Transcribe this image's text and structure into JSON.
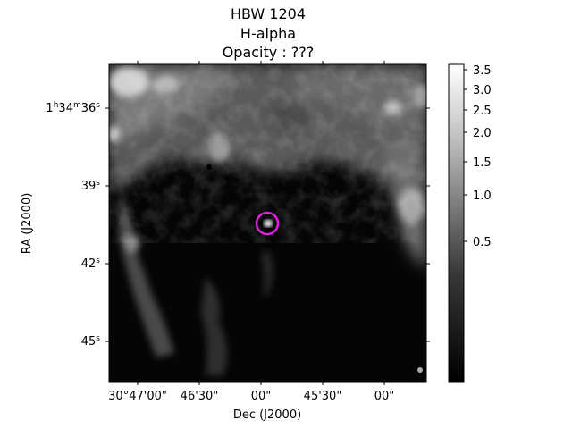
{
  "title": {
    "line1": "HBW 1204",
    "line2": "H-alpha",
    "line3": "Opacity : ???"
  },
  "axes": {
    "xlabel": "Dec (J2000)",
    "ylabel": "RA (J2000)",
    "x_ticks": [
      "30°47'00\"",
      "46'30\"",
      "00\"",
      "45'30\"",
      "00\""
    ],
    "y_ticks": [
      {
        "main": "1",
        "h": "h",
        "m_val": "34",
        "m": "m",
        "s_val": "36",
        "s": "s"
      },
      {
        "main": "39",
        "s": "s"
      },
      {
        "main": "42",
        "s": "s"
      },
      {
        "main": "45",
        "s": "s"
      }
    ]
  },
  "colorbar": {
    "labels": [
      "3.5",
      "3.0",
      "2.5",
      "2.0",
      "1.5",
      "1.0",
      "0.5"
    ],
    "colormap": "grayscale",
    "scale": "nonlinear"
  },
  "marker": {
    "shape": "circle",
    "color": "#e020e0"
  }
}
